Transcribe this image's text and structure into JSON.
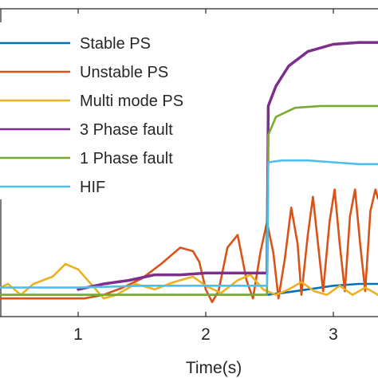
{
  "chart_data": {
    "type": "line",
    "xlabel": "Time(s)",
    "ylabel": "",
    "title": "",
    "xlim": [
      0.2,
      3.35
    ],
    "ylim": [
      -0.1,
      1.6
    ],
    "x_ticks": [
      1,
      2,
      3
    ],
    "x_tick_labels": [
      "1",
      "2",
      "3"
    ],
    "grid": false,
    "legend_position": "top-left",
    "series": [
      {
        "name": "Stable PS",
        "color": "#0072BD",
        "points": [
          [
            0.2,
            0.02
          ],
          [
            1.2,
            0.02
          ],
          [
            1.8,
            0.02
          ],
          [
            2.3,
            0.02
          ],
          [
            2.48,
            0.02
          ],
          [
            2.6,
            0.03
          ],
          [
            2.8,
            0.05
          ],
          [
            3.0,
            0.07
          ],
          [
            3.2,
            0.08
          ],
          [
            3.35,
            0.08
          ]
        ]
      },
      {
        "name": "Unstable PS",
        "color": "#D95319",
        "points": [
          [
            0.2,
            0.0
          ],
          [
            1.05,
            0.0
          ],
          [
            1.2,
            0.02
          ],
          [
            1.35,
            0.06
          ],
          [
            1.5,
            0.11
          ],
          [
            1.65,
            0.19
          ],
          [
            1.8,
            0.28
          ],
          [
            1.9,
            0.26
          ],
          [
            1.95,
            0.2
          ],
          [
            2.0,
            0.05
          ],
          [
            2.05,
            -0.02
          ],
          [
            2.1,
            0.04
          ],
          [
            2.17,
            0.28
          ],
          [
            2.25,
            0.35
          ],
          [
            2.32,
            0.1
          ],
          [
            2.37,
            0.0
          ],
          [
            2.43,
            0.26
          ],
          [
            2.48,
            0.42
          ],
          [
            2.53,
            0.25
          ],
          [
            2.57,
            0.0
          ],
          [
            2.62,
            0.22
          ],
          [
            2.67,
            0.5
          ],
          [
            2.72,
            0.3
          ],
          [
            2.75,
            0.02
          ],
          [
            2.8,
            0.35
          ],
          [
            2.84,
            0.56
          ],
          [
            2.88,
            0.3
          ],
          [
            2.92,
            0.04
          ],
          [
            2.97,
            0.42
          ],
          [
            3.01,
            0.6
          ],
          [
            3.05,
            0.3
          ],
          [
            3.09,
            0.04
          ],
          [
            3.13,
            0.45
          ],
          [
            3.17,
            0.6
          ],
          [
            3.21,
            0.3
          ],
          [
            3.25,
            0.04
          ],
          [
            3.29,
            0.48
          ],
          [
            3.33,
            0.6
          ],
          [
            3.35,
            0.55
          ]
        ]
      },
      {
        "name": "Multi mode PS",
        "color": "#EDB120",
        "points": [
          [
            0.2,
            0.0
          ],
          [
            0.3,
            0.03
          ],
          [
            0.45,
            0.08
          ],
          [
            0.55,
            0.02
          ],
          [
            0.65,
            0.08
          ],
          [
            0.8,
            0.12
          ],
          [
            0.9,
            0.19
          ],
          [
            1.0,
            0.16
          ],
          [
            1.1,
            0.08
          ],
          [
            1.2,
            0.0
          ],
          [
            1.3,
            0.02
          ],
          [
            1.45,
            0.08
          ],
          [
            1.6,
            0.05
          ],
          [
            1.75,
            0.09
          ],
          [
            1.9,
            0.12
          ],
          [
            2.0,
            0.07
          ],
          [
            2.12,
            0.03
          ],
          [
            2.25,
            0.1
          ],
          [
            2.35,
            0.13
          ],
          [
            2.45,
            0.05
          ],
          [
            2.55,
            0.02
          ],
          [
            2.65,
            0.05
          ],
          [
            2.75,
            0.09
          ],
          [
            2.85,
            0.04
          ],
          [
            2.95,
            0.02
          ],
          [
            3.05,
            0.07
          ],
          [
            3.15,
            0.02
          ],
          [
            3.25,
            0.06
          ],
          [
            3.35,
            0.02
          ]
        ]
      },
      {
        "name": "3 Phase fault",
        "color": "#7E2F8E",
        "points": [
          [
            1.0,
            0.05
          ],
          [
            1.2,
            0.08
          ],
          [
            1.4,
            0.1
          ],
          [
            1.6,
            0.13
          ],
          [
            1.8,
            0.13
          ],
          [
            2.0,
            0.14
          ],
          [
            2.2,
            0.14
          ],
          [
            2.4,
            0.14
          ],
          [
            2.48,
            0.14
          ],
          [
            2.49,
            1.06
          ],
          [
            2.55,
            1.17
          ],
          [
            2.65,
            1.28
          ],
          [
            2.8,
            1.36
          ],
          [
            3.0,
            1.4
          ],
          [
            3.2,
            1.41
          ],
          [
            3.35,
            1.41
          ]
        ]
      },
      {
        "name": "1 Phase fault",
        "color": "#77AC30",
        "points": [
          [
            0.2,
            0.02
          ],
          [
            1.0,
            0.02
          ],
          [
            1.5,
            0.02
          ],
          [
            2.0,
            0.02
          ],
          [
            2.48,
            0.02
          ],
          [
            2.49,
            0.9
          ],
          [
            2.55,
            1.0
          ],
          [
            2.7,
            1.05
          ],
          [
            2.9,
            1.06
          ],
          [
            3.1,
            1.06
          ],
          [
            3.35,
            1.06
          ]
        ]
      },
      {
        "name": "HIF",
        "color": "#4DBEEE",
        "points": [
          [
            0.2,
            0.06
          ],
          [
            1.0,
            0.06
          ],
          [
            1.5,
            0.07
          ],
          [
            2.0,
            0.07
          ],
          [
            2.48,
            0.07
          ],
          [
            2.49,
            0.75
          ],
          [
            2.6,
            0.76
          ],
          [
            2.8,
            0.76
          ],
          [
            3.0,
            0.75
          ],
          [
            3.2,
            0.74
          ],
          [
            3.35,
            0.74
          ]
        ]
      }
    ]
  }
}
